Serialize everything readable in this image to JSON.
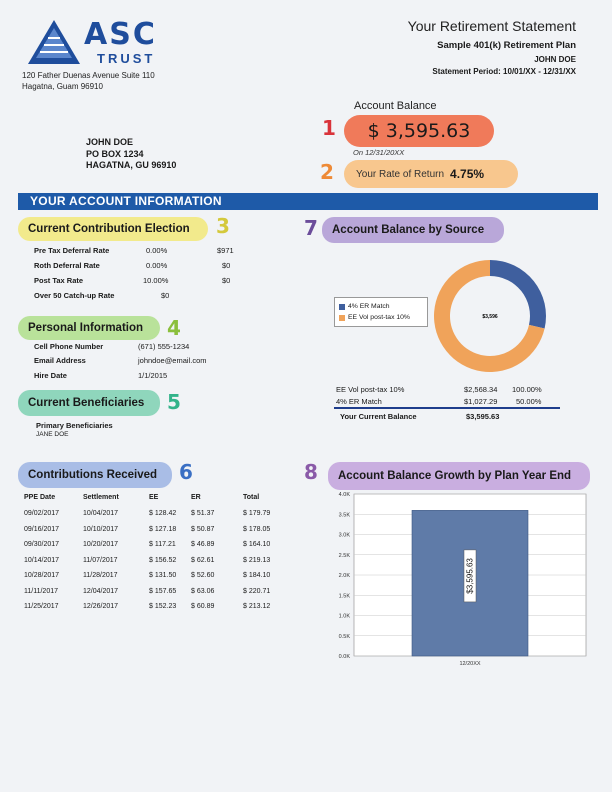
{
  "logo": {
    "main": "ASC",
    "sub": "TRUST"
  },
  "company_address": [
    "120 Father Duenas Avenue Suite 110",
    "Hagatna, Guam 96910"
  ],
  "statement": {
    "title": "Your Retirement Statement",
    "plan": "Sample 401(k) Retirement Plan",
    "participant": "JOHN DOE",
    "period": "Statement Period:  10/01/XX - 12/31/XX"
  },
  "account_balance": {
    "label": "Account Balance",
    "value": "$  3,595.63",
    "as_of": "On 12/31/20XX"
  },
  "rate_of_return": {
    "label": "Your Rate of Return",
    "value": "4.75%"
  },
  "mailing_address": [
    "JOHN DOE",
    "PO BOX 1234",
    "HAGATNA, GU 96910"
  ],
  "section_banner": "YOUR ACCOUNT INFORMATION",
  "callout_numbers": [
    "1",
    "2",
    "3",
    "4",
    "5",
    "6",
    "7",
    "8"
  ],
  "contribution_election": {
    "title": "Current Contribution Election",
    "rows": [
      {
        "label": "Pre Tax Deferral Rate",
        "rate": "0.00%",
        "amount": "$971"
      },
      {
        "label": "Roth Deferral Rate",
        "rate": "0.00%",
        "amount": "$0"
      },
      {
        "label": "Post Tax Rate",
        "rate": "10.00%",
        "amount": "$0"
      },
      {
        "label": "Over 50 Catch-up Rate",
        "rate": "$0",
        "amount": ""
      }
    ]
  },
  "personal_info": {
    "title": "Personal Information",
    "rows": [
      {
        "label": "Cell Phone Number",
        "value": "(671) 555-1234"
      },
      {
        "label": "Email Address",
        "value": "johndoe@email.com"
      },
      {
        "label": "Hire Date",
        "value": "1/1/2015"
      }
    ]
  },
  "beneficiaries": {
    "title": "Current Beneficiaries",
    "label": "Primary Beneficiaries",
    "name": "JANE DOE"
  },
  "contributions_received": {
    "title": "Contributions Received",
    "headers": [
      "PPE Date",
      "Settlement",
      "EE",
      "ER",
      "Total"
    ],
    "rows": [
      [
        "09/02/2017",
        "10/04/2017",
        "$ 128.42",
        "$ 51.37",
        "$ 179.79"
      ],
      [
        "09/16/2017",
        "10/10/2017",
        "$ 127.18",
        "$ 50.87",
        "$ 178.05"
      ],
      [
        "09/30/2017",
        "10/20/2017",
        "$ 117.21",
        "$ 46.89",
        "$ 164.10"
      ],
      [
        "10/14/2017",
        "11/07/2017",
        "$ 156.52",
        "$ 62.61",
        "$ 219.13"
      ],
      [
        "10/28/2017",
        "11/28/2017",
        "$ 131.50",
        "$ 52.60",
        "$ 184.10"
      ],
      [
        "11/11/2017",
        "12/04/2017",
        "$ 157.65",
        "$ 63.06",
        "$ 220.71"
      ],
      [
        "11/25/2017",
        "12/26/2017",
        "$ 152.23",
        "$ 60.89",
        "$ 213.12"
      ]
    ]
  },
  "balance_by_source": {
    "title": "Account Balance by Source",
    "center_label": "$3,596",
    "rows": [
      {
        "label": "EE Vol post-tax 10%",
        "amount": "$2,568.34",
        "pct": "100.00%"
      },
      {
        "label": "4% ER Match",
        "amount": "$1,027.29",
        "pct": "50.00%"
      }
    ],
    "total_label": "Your Current Balance",
    "total_value": "$3,595.63"
  },
  "growth": {
    "title": "Account Balance Growth by Plan Year End"
  },
  "colors": {
    "er_match": "#3f5f9e",
    "ee_vol": "#f0a35a",
    "growth_bar": "#5f7ba8"
  },
  "chart_data": [
    {
      "type": "pie",
      "style": "donut",
      "categories": [
        "4% ER Match",
        "EE Vol post-tax 10%"
      ],
      "values": [
        1027.29,
        2568.34
      ],
      "center_label": "$3,596",
      "legend": "left"
    },
    {
      "type": "bar",
      "categories": [
        "12/20XX"
      ],
      "values": [
        3595.63
      ],
      "data_labels": [
        "$3,595.63"
      ],
      "ylim": [
        0,
        4000
      ],
      "yticks": [
        "0.0K",
        "0.5K",
        "1.0K",
        "1.5K",
        "2.0K",
        "2.5K",
        "3.0K",
        "3.5K",
        "4.0K"
      ],
      "grid": true
    }
  ]
}
